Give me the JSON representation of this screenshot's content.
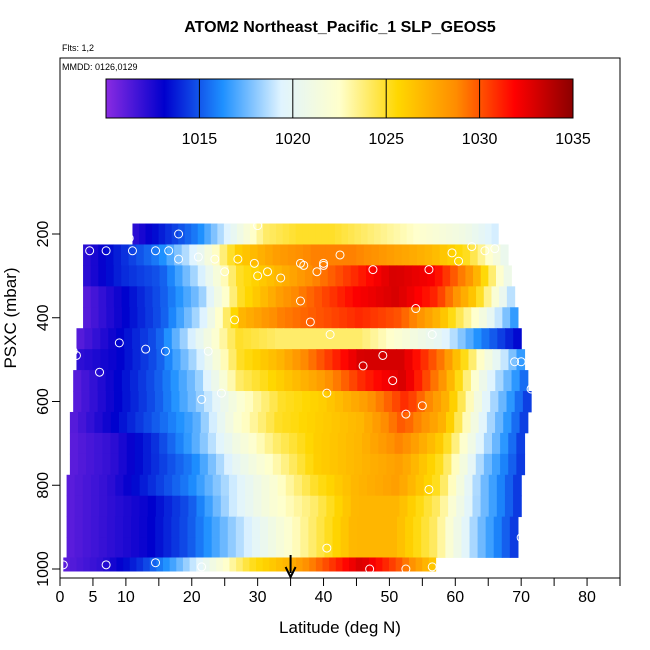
{
  "chart_data": {
    "type": "heatmap",
    "title": "ATOM2 Northeast_Pacific_1 SLP_GEOS5",
    "subtitle_lines": [
      "Flts: 1,2",
      "MMDD: 0126,0129"
    ],
    "xlabel": "Latitude (deg N)",
    "ylabel": "PSXC (mbar)",
    "xlim": [
      0,
      85
    ],
    "ylim": [
      1000,
      100
    ],
    "y_reversed": true,
    "x_ticks": [
      0,
      5,
      10,
      20,
      30,
      40,
      50,
      60,
      70,
      80
    ],
    "x_minor_ticks": [
      15,
      25,
      35,
      45,
      55,
      65,
      75,
      85
    ],
    "y_ticks": [
      200,
      400,
      600,
      800,
      1000
    ],
    "colorbar": {
      "range": [
        1010,
        1035
      ],
      "ticks": [
        1015,
        1020,
        1025,
        1030,
        1035
      ],
      "colors": [
        "#8a2be2",
        "#0000cd",
        "#1e90ff",
        "#e0f4ff",
        "#ffffcc",
        "#ffd700",
        "#ff8c00",
        "#ff0000",
        "#8b0000"
      ]
    },
    "rows": [
      {
        "p": 200,
        "x0": 11,
        "x1": 66.5,
        "v": [
          1012,
          1014,
          1016,
          1020,
          1024,
          1025,
          1025,
          1024,
          1023,
          1022,
          1021,
          1019
        ]
      },
      {
        "p": 250,
        "x0": 3.5,
        "x1": 68,
        "v": [
          1012,
          1014,
          1016,
          1020,
          1026,
          1028,
          1029,
          1029,
          1028,
          1027,
          1025,
          1020
        ]
      },
      {
        "p": 300,
        "x0": 3.5,
        "x1": 68.5,
        "v": [
          1012,
          1014,
          1015,
          1019,
          1025,
          1027,
          1029,
          1031,
          1033,
          1032,
          1028,
          1020
        ]
      },
      {
        "p": 350,
        "x0": 3.5,
        "x1": 69,
        "v": [
          1011,
          1013,
          1015,
          1018,
          1025,
          1028,
          1030,
          1032,
          1033,
          1031,
          1026,
          1018
        ]
      },
      {
        "p": 400,
        "x0": 3.5,
        "x1": 69.5,
        "v": [
          1011,
          1013,
          1015,
          1019,
          1027,
          1029,
          1030,
          1031,
          1030,
          1027,
          1022,
          1016
        ]
      },
      {
        "p": 450,
        "x0": 2.5,
        "x1": 70,
        "v": [
          1011,
          1013,
          1015,
          1020,
          1025,
          1024,
          1024,
          1024,
          1022,
          1020,
          1016,
          1013
        ]
      },
      {
        "p": 500,
        "x0": 2.5,
        "x1": 70.5,
        "v": [
          1012,
          1013,
          1015,
          1019,
          1025,
          1027,
          1030,
          1033,
          1033,
          1029,
          1022,
          1016
        ]
      },
      {
        "p": 550,
        "x0": 2,
        "x1": 71,
        "v": [
          1011,
          1013,
          1015,
          1018,
          1024,
          1026,
          1028,
          1031,
          1033,
          1028,
          1020,
          1015
        ]
      },
      {
        "p": 600,
        "x0": 2,
        "x1": 71.5,
        "v": [
          1011,
          1013,
          1015,
          1018,
          1022,
          1025,
          1026,
          1028,
          1031,
          1027,
          1019,
          1014
        ]
      },
      {
        "p": 650,
        "x0": 1.5,
        "x1": 71,
        "v": [
          1011,
          1013,
          1015,
          1017,
          1022,
          1025,
          1026,
          1027,
          1030,
          1027,
          1019,
          1014
        ]
      },
      {
        "p": 700,
        "x0": 1.5,
        "x1": 70.5,
        "v": [
          1011,
          1012,
          1014,
          1017,
          1021,
          1024,
          1026,
          1027,
          1029,
          1026,
          1019,
          1014
        ]
      },
      {
        "p": 750,
        "x0": 1.5,
        "x1": 70.5,
        "v": [
          1011,
          1012,
          1014,
          1016,
          1020,
          1023,
          1026,
          1027,
          1028,
          1025,
          1018,
          1014
        ]
      },
      {
        "p": 800,
        "x0": 1,
        "x1": 70,
        "v": [
          1011,
          1012,
          1014,
          1016,
          1019,
          1022,
          1025,
          1027,
          1028,
          1025,
          1018,
          1014
        ]
      },
      {
        "p": 850,
        "x0": 1,
        "x1": 70,
        "v": [
          1011,
          1012,
          1013,
          1015,
          1019,
          1022,
          1024,
          1027,
          1027,
          1024,
          1018,
          1014
        ]
      },
      {
        "p": 900,
        "x0": 1,
        "x1": 69.5,
        "v": [
          1011,
          1012,
          1013,
          1015,
          1018,
          1021,
          1024,
          1027,
          1027,
          1024,
          1018,
          1014
        ]
      },
      {
        "p": 950,
        "x0": 1,
        "x1": 69.5,
        "v": [
          1011,
          1012,
          1013,
          1015,
          1018,
          1021,
          1024,
          1027,
          1027,
          1024,
          1018,
          1014
        ]
      },
      {
        "p": 995,
        "x0": 0.5,
        "x1": 57,
        "v": [
          1011,
          1012,
          1014,
          1017,
          1021,
          1025,
          1027,
          1030,
          1033,
          1030,
          1026
        ]
      }
    ],
    "points": [
      [
        0.5,
        990
      ],
      [
        7,
        990
      ],
      [
        14.5,
        985
      ],
      [
        21.5,
        995
      ],
      [
        47,
        1000
      ],
      [
        52.5,
        1000
      ],
      [
        56.5,
        995
      ],
      [
        40.5,
        950
      ],
      [
        70,
        925
      ],
      [
        56,
        810
      ],
      [
        40.5,
        580
      ],
      [
        24.5,
        580
      ],
      [
        21.5,
        595
      ],
      [
        55,
        610
      ],
      [
        52.5,
        630
      ],
      [
        71.5,
        570
      ],
      [
        50.5,
        550
      ],
      [
        46,
        515
      ],
      [
        49,
        490
      ],
      [
        70,
        505
      ],
      [
        69,
        505
      ],
      [
        2,
        480
      ],
      [
        2.5,
        490
      ],
      [
        6,
        530
      ],
      [
        13,
        475
      ],
      [
        16,
        480
      ],
      [
        22.5,
        480
      ],
      [
        9,
        460
      ],
      [
        56.5,
        440
      ],
      [
        41,
        440
      ],
      [
        36.5,
        360
      ],
      [
        38,
        410
      ],
      [
        26.5,
        405
      ],
      [
        54,
        378
      ],
      [
        56,
        285
      ],
      [
        59.5,
        245
      ],
      [
        60.5,
        265
      ],
      [
        66,
        235
      ],
      [
        64.5,
        240
      ],
      [
        62.5,
        230
      ],
      [
        47.5,
        285
      ],
      [
        40,
        275
      ],
      [
        42.5,
        250
      ],
      [
        36.5,
        270
      ],
      [
        37,
        275
      ],
      [
        39,
        290
      ],
      [
        40,
        270
      ],
      [
        29.5,
        270
      ],
      [
        25,
        290
      ],
      [
        31.5,
        290
      ],
      [
        30,
        300
      ],
      [
        33.5,
        305
      ],
      [
        21,
        255
      ],
      [
        23.5,
        260
      ],
      [
        27,
        260
      ],
      [
        18,
        260
      ],
      [
        16.5,
        240
      ],
      [
        14.5,
        240
      ],
      [
        11,
        240
      ],
      [
        10.5,
        210
      ],
      [
        2,
        240
      ],
      [
        4.5,
        240
      ],
      [
        7,
        240
      ],
      [
        18,
        200
      ],
      [
        30,
        180
      ]
    ],
    "arrow_at_x": 35
  }
}
